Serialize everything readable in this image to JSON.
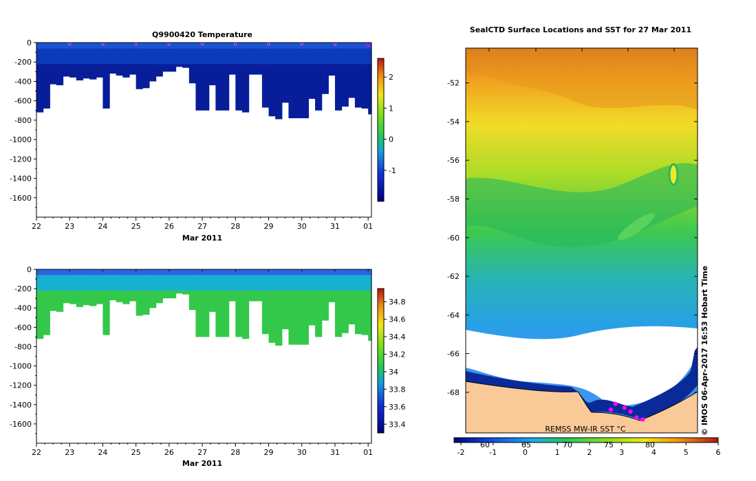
{
  "chart_data": [
    {
      "type": "heatmap",
      "title": "Q9900420  Temperature",
      "xlabel": "Mar 2011",
      "ylabel": "",
      "x_tick_labels": [
        "22",
        "23",
        "24",
        "25",
        "26",
        "27",
        "28",
        "29",
        "30",
        "31",
        "01"
      ],
      "y_ticks": [
        0,
        -200,
        -400,
        -600,
        -800,
        -1000,
        -1200,
        -1400,
        -1600
      ],
      "ylim": [
        -1800,
        0
      ],
      "xlim": [
        22,
        32.1
      ],
      "colorbar": {
        "ticks": [
          -1,
          0,
          1,
          2
        ],
        "range": [
          -2.0,
          2.6
        ]
      },
      "colors": {
        "surface": "#1d52d4",
        "mid": "#0b3bbb",
        "deep": "#071d9a"
      },
      "profile_days": [
        22.0,
        22.2,
        22.4,
        22.6,
        22.8,
        23.0,
        23.2,
        23.4,
        23.6,
        23.8,
        24.0,
        24.2,
        24.4,
        24.6,
        24.8,
        25.0,
        25.2,
        25.4,
        25.6,
        25.8,
        26.0,
        26.2,
        26.4,
        26.6,
        26.8,
        27.0,
        27.2,
        27.4,
        27.6,
        27.8,
        28.0,
        28.2,
        28.4,
        28.6,
        28.8,
        29.0,
        29.2,
        29.4,
        29.6,
        29.8,
        30.0,
        30.2,
        30.4,
        30.6,
        30.8,
        31.0,
        31.2,
        31.4,
        31.6,
        31.8,
        32.0
      ],
      "max_depths": [
        720,
        680,
        430,
        440,
        350,
        360,
        390,
        370,
        380,
        360,
        680,
        320,
        340,
        360,
        330,
        480,
        470,
        400,
        350,
        300,
        300,
        250,
        260,
        420,
        700,
        700,
        440,
        700,
        700,
        330,
        700,
        720,
        330,
        330,
        670,
        760,
        790,
        620,
        780,
        780,
        780,
        580,
        700,
        530,
        340,
        700,
        660,
        570,
        670,
        680,
        740
      ],
      "markers_days": [
        23.0,
        24.0,
        25.0,
        26.0,
        27.0,
        28.0,
        29.0,
        30.0,
        31.0,
        32.0
      ]
    },
    {
      "type": "heatmap",
      "title": "",
      "xlabel": "Mar 2011",
      "ylabel": "",
      "x_tick_labels": [
        "22",
        "23",
        "24",
        "25",
        "26",
        "27",
        "28",
        "29",
        "30",
        "31",
        "01"
      ],
      "y_ticks": [
        0,
        -200,
        -400,
        -600,
        -800,
        -1000,
        -1200,
        -1400,
        -1600
      ],
      "ylim": [
        -1800,
        0
      ],
      "xlim": [
        22,
        32.1
      ],
      "colorbar": {
        "ticks": [
          33.4,
          33.6,
          33.8,
          34,
          34.2,
          34.4,
          34.6,
          34.8
        ],
        "tick_labels": [
          "33.4",
          "33.6",
          "33.8",
          "34",
          "34.2",
          "34.4",
          "34.6",
          "34.8"
        ],
        "range": [
          33.3,
          34.95
        ]
      },
      "colors": {
        "surface": "#2a64e0",
        "mid": "#16b0d0",
        "deep": "#33c84a"
      },
      "profile_days": [
        22.0,
        22.2,
        22.4,
        22.6,
        22.8,
        23.0,
        23.2,
        23.4,
        23.6,
        23.8,
        24.0,
        24.2,
        24.4,
        24.6,
        24.8,
        25.0,
        25.2,
        25.4,
        25.6,
        25.8,
        26.0,
        26.2,
        26.4,
        26.6,
        26.8,
        27.0,
        27.2,
        27.4,
        27.6,
        27.8,
        28.0,
        28.2,
        28.4,
        28.6,
        28.8,
        29.0,
        29.2,
        29.4,
        29.6,
        29.8,
        30.0,
        30.2,
        30.4,
        30.6,
        30.8,
        31.0,
        31.2,
        31.4,
        31.6,
        31.8,
        32.0
      ],
      "max_depths": [
        720,
        680,
        430,
        440,
        350,
        360,
        390,
        370,
        380,
        360,
        680,
        320,
        340,
        360,
        330,
        480,
        470,
        400,
        350,
        300,
        300,
        250,
        260,
        420,
        700,
        700,
        440,
        700,
        700,
        330,
        700,
        720,
        330,
        330,
        670,
        760,
        790,
        620,
        780,
        780,
        780,
        580,
        700,
        530,
        340,
        700,
        660,
        570,
        670,
        680,
        740
      ]
    },
    {
      "type": "heatmap",
      "title": "SealCTD Surface Locations and SST for 27 Mar 2011",
      "xlabel": "",
      "ylabel": "",
      "y_ticks": [
        -52,
        -54,
        -56,
        -58,
        -60,
        -62,
        -64,
        -66,
        -68
      ],
      "ylim": [
        -70.1,
        -50.2
      ],
      "colorbar": {
        "ticks": [
          -2,
          -1,
          0,
          1,
          2,
          3,
          4,
          5,
          6
        ],
        "range": [
          -2,
          6
        ],
        "secondary_labels": [
          "60",
          "65",
          "70",
          "75",
          "80"
        ]
      },
      "annotation": "REMSS MW-IR SST °C",
      "credit": "© IMOS 06-Apr-2017 16:53 Hobart Time",
      "land_color": "#f9c998",
      "seal_track": [
        [
          -68.9,
          4.0
        ],
        [
          -68.6,
          4.3
        ],
        [
          -68.8,
          4.9
        ],
        [
          -69.0,
          5.3
        ],
        [
          -69.3,
          5.7
        ],
        [
          -69.4,
          6.1
        ]
      ]
    }
  ]
}
